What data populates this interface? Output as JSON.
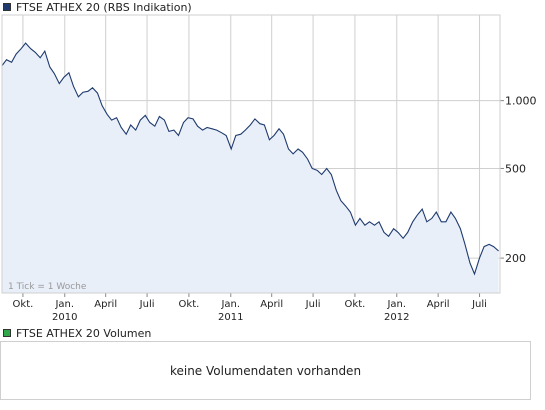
{
  "price_panel": {
    "title": "FTSE ATHEX 20 (RBS Indikation)",
    "swatch_color": "#1f3a6e",
    "tick_note": "1 Tick = 1 Woche"
  },
  "volume_panel": {
    "title": "FTSE ATHEX 20 Volumen",
    "swatch_color": "#2fa84a",
    "message": "keine Volumendaten vorhanden"
  },
  "chart_data": {
    "type": "area",
    "title": "FTSE ATHEX 20 (RBS Indikation)",
    "y_scale": "log",
    "ylim": [
      140,
      2400
    ],
    "grid": true,
    "y_ticks": [
      {
        "value": 1000,
        "label": "1.000"
      },
      {
        "value": 500,
        "label": "500"
      },
      {
        "value": 200,
        "label": "200"
      }
    ],
    "x_ticks": [
      {
        "date": "2009-10-01",
        "label": "Okt."
      },
      {
        "date": "2010-01-01",
        "label": "Jan.",
        "year": "2010"
      },
      {
        "date": "2010-04-01",
        "label": "April"
      },
      {
        "date": "2010-07-01",
        "label": "Juli"
      },
      {
        "date": "2010-10-01",
        "label": "Okt."
      },
      {
        "date": "2011-01-01",
        "label": "Jan.",
        "year": "2011"
      },
      {
        "date": "2011-04-01",
        "label": "April"
      },
      {
        "date": "2011-07-01",
        "label": "Juli"
      },
      {
        "date": "2011-10-01",
        "label": "Okt."
      },
      {
        "date": "2012-01-01",
        "label": "Jan.",
        "year": "2012"
      },
      {
        "date": "2012-04-01",
        "label": "April"
      },
      {
        "date": "2012-07-01",
        "label": "Juli"
      }
    ],
    "x_range": [
      "2009-08-16",
      "2012-08-15"
    ],
    "colors": {
      "line": "#1f3a6e",
      "fill": "#e8eff9",
      "grid": "#cfcfcf"
    },
    "series": [
      {
        "x": [
          "2009-08-16",
          "2009-08-26",
          "2009-09-06",
          "2009-09-16",
          "2009-09-27",
          "2009-10-07",
          "2009-10-18",
          "2009-10-28",
          "2009-11-08",
          "2009-11-18",
          "2009-11-29",
          "2009-12-09",
          "2009-12-20",
          "2009-12-30",
          "2010-01-10",
          "2010-01-20",
          "2010-01-31",
          "2010-02-10",
          "2010-02-21",
          "2010-03-03",
          "2010-03-14",
          "2010-03-24",
          "2010-04-04",
          "2010-04-14",
          "2010-04-25",
          "2010-05-05",
          "2010-05-16",
          "2010-05-26",
          "2010-06-06",
          "2010-06-16",
          "2010-06-27",
          "2010-07-07",
          "2010-07-18",
          "2010-07-28",
          "2010-08-08",
          "2010-08-18",
          "2010-08-29",
          "2010-09-08",
          "2010-09-19",
          "2010-09-29",
          "2010-10-10",
          "2010-10-20",
          "2010-10-31",
          "2010-11-10",
          "2010-11-21",
          "2010-12-01",
          "2010-12-12",
          "2010-12-22",
          "2011-01-02",
          "2011-01-12",
          "2011-01-23",
          "2011-02-02",
          "2011-02-13",
          "2011-02-23",
          "2011-03-06",
          "2011-03-16",
          "2011-03-27",
          "2011-04-06",
          "2011-04-17",
          "2011-04-27",
          "2011-05-08",
          "2011-05-18",
          "2011-05-29",
          "2011-06-08",
          "2011-06-19",
          "2011-06-29",
          "2011-07-10",
          "2011-07-20",
          "2011-07-31",
          "2011-08-10",
          "2011-08-21",
          "2011-08-31",
          "2011-09-11",
          "2011-09-21",
          "2011-10-02",
          "2011-10-12",
          "2011-10-23",
          "2011-11-02",
          "2011-11-13",
          "2011-11-23",
          "2011-12-04",
          "2011-12-14",
          "2011-12-25",
          "2012-01-04",
          "2012-01-15",
          "2012-01-25",
          "2012-02-05",
          "2012-02-15",
          "2012-02-26",
          "2012-03-07",
          "2012-03-18",
          "2012-03-28",
          "2012-04-08",
          "2012-04-18",
          "2012-04-29",
          "2012-05-09",
          "2012-05-20",
          "2012-05-30",
          "2012-06-10",
          "2012-06-20",
          "2012-07-01",
          "2012-07-11",
          "2012-07-22",
          "2012-08-01",
          "2012-08-12"
        ],
        "y": [
          1430,
          1520,
          1480,
          1610,
          1700,
          1800,
          1700,
          1640,
          1550,
          1660,
          1410,
          1320,
          1190,
          1270,
          1330,
          1160,
          1040,
          1090,
          1100,
          1140,
          1080,
          950,
          870,
          820,
          840,
          760,
          710,
          780,
          740,
          820,
          860,
          800,
          770,
          850,
          820,
          730,
          740,
          700,
          800,
          840,
          830,
          770,
          740,
          760,
          750,
          740,
          720,
          700,
          610,
          700,
          710,
          740,
          780,
          830,
          790,
          780,
          670,
          700,
          750,
          710,
          610,
          580,
          610,
          590,
          550,
          500,
          490,
          470,
          500,
          470,
          400,
          360,
          340,
          320,
          280,
          300,
          280,
          290,
          280,
          290,
          260,
          250,
          270,
          260,
          245,
          260,
          290,
          310,
          330,
          290,
          300,
          320,
          290,
          290,
          320,
          300,
          270,
          230,
          190,
          170,
          200,
          225,
          230,
          225,
          215
        ]
      }
    ]
  }
}
